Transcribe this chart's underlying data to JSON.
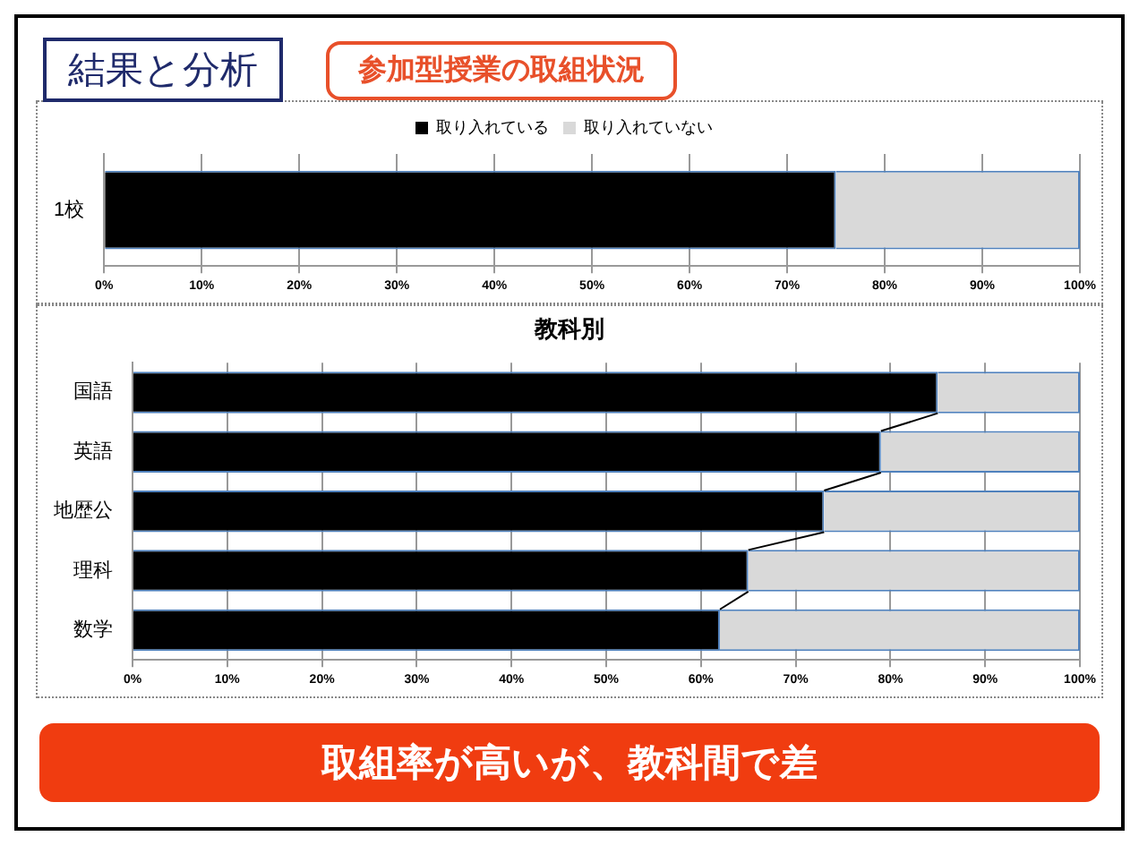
{
  "chart_data": [
    {
      "type": "bar",
      "title": "結果と分析",
      "subtitle": "参加型授業の取組状況",
      "orientation": "horizontal",
      "stacked": true,
      "categories": [
        "1校"
      ],
      "series": [
        {
          "name": "取り入れている",
          "color": "#000000",
          "values": [
            75
          ]
        },
        {
          "name": "取り入れていない",
          "color": "#d9d9d9",
          "values": [
            25
          ]
        }
      ],
      "xlim": [
        0,
        100
      ],
      "xticks": [
        {
          "value": 0,
          "label": "0%"
        },
        {
          "value": 10,
          "label": "10%"
        },
        {
          "value": 20,
          "label": "20%"
        },
        {
          "value": 30,
          "label": "30%"
        },
        {
          "value": 40,
          "label": "40%"
        },
        {
          "value": 50,
          "label": "50%"
        },
        {
          "value": 60,
          "label": "60%"
        },
        {
          "value": 70,
          "label": "70%"
        },
        {
          "value": 80,
          "label": "80%"
        },
        {
          "value": 90,
          "label": "90%"
        },
        {
          "value": 100,
          "label": "100%"
        }
      ],
      "grid": "x",
      "legend": "top"
    },
    {
      "type": "bar",
      "title": "教科別",
      "orientation": "horizontal",
      "stacked": true,
      "categories": [
        "国語",
        "英語",
        "地歴公",
        "理科",
        "数学"
      ],
      "series": [
        {
          "color": "#000000",
          "values": [
            85,
            79,
            73,
            65,
            62
          ]
        },
        {
          "color": "#d9d9d9",
          "values": [
            15,
            21,
            27,
            35,
            38
          ]
        }
      ],
      "xlim": [
        0,
        100
      ],
      "xticks": [
        {
          "value": 0,
          "label": "0%"
        },
        {
          "value": 10,
          "label": "10%"
        },
        {
          "value": 20,
          "label": "20%"
        },
        {
          "value": 30,
          "label": "30%"
        },
        {
          "value": 40,
          "label": "40%"
        },
        {
          "value": 50,
          "label": "50%"
        },
        {
          "value": 60,
          "label": "60%"
        },
        {
          "value": 70,
          "label": "70%"
        },
        {
          "value": 80,
          "label": "80%"
        },
        {
          "value": 90,
          "label": "90%"
        },
        {
          "value": 100,
          "label": "100%"
        }
      ],
      "grid": "x",
      "annotations": [
        "取組率が高いが、教科間で差"
      ]
    }
  ]
}
